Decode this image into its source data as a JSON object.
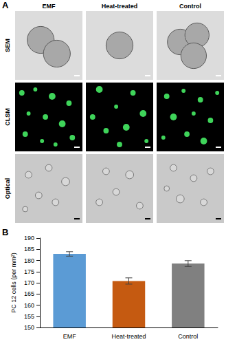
{
  "figure": {
    "panel_labels": [
      "A",
      "B"
    ],
    "columns": [
      "EMF",
      "Heat-treated",
      "Control"
    ],
    "rows": [
      "SEM",
      "CLSM",
      "Optical"
    ]
  },
  "chart_data": {
    "type": "bar",
    "ylabel": "PC 12 cells (per mm²)",
    "categories": [
      "EMF",
      "Heat-treated",
      "Control"
    ],
    "values": [
      182.9,
      170.8,
      178.6
    ],
    "errors": [
      1.0,
      1.4,
      1.3
    ],
    "colors": [
      "#5b9bd5",
      "#c55a11",
      "#808080"
    ],
    "ylim": [
      150,
      190
    ],
    "yticks": [
      150,
      155,
      160,
      165,
      170,
      175,
      180,
      185,
      190
    ],
    "grid": false
  }
}
